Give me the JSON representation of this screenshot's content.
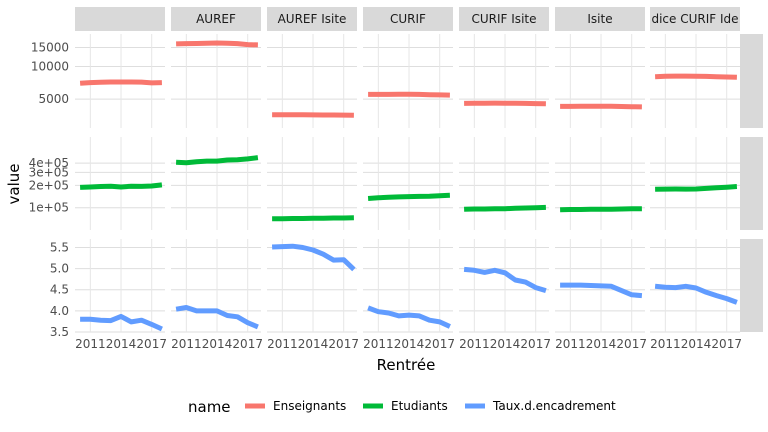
{
  "chart_data": {
    "type": "line",
    "xlabel": "Rentrée",
    "ylabel": "value",
    "x": [
      2010,
      2011,
      2012,
      2013,
      2014,
      2015,
      2016,
      2017,
      2018
    ],
    "x_ticks": [
      2011,
      2014,
      2017
    ],
    "legend": {
      "title": "name",
      "placement": "bottom"
    },
    "series_styles": [
      {
        "name": "Enseignants",
        "color": "#F8766D"
      },
      {
        "name": "Etudiants",
        "color": "#00BA38"
      },
      {
        "name": "Taux.d.encadrement",
        "color": "#619CFF"
      }
    ],
    "columns": [
      {
        "label": ""
      },
      {
        "label": "AUREF"
      },
      {
        "label": "AUREF Isite"
      },
      {
        "label": "CURIF"
      },
      {
        "label": "CURIF Isite"
      },
      {
        "label": "Isite"
      },
      {
        "label": "dice CURIF Ide"
      }
    ],
    "rows": [
      {
        "label": "Enseignants",
        "series": "Enseignants",
        "scale": "log",
        "ylim": [
          2700,
          20000
        ],
        "ticks": [
          {
            "value": 5000,
            "label": "5000"
          },
          {
            "value": 10000,
            "label": "10000"
          },
          {
            "value": 15000,
            "label": "15000"
          }
        ],
        "values": [
          [
            7000,
            7100,
            7150,
            7200,
            7200,
            7200,
            7180,
            7050,
            7100
          ],
          [
            16200,
            16300,
            16350,
            16450,
            16500,
            16450,
            16300,
            15950,
            15850
          ],
          [
            3580,
            3580,
            3580,
            3575,
            3570,
            3565,
            3560,
            3555,
            3550
          ],
          [
            5520,
            5520,
            5525,
            5530,
            5530,
            5520,
            5490,
            5460,
            5440
          ],
          [
            4560,
            4570,
            4580,
            4585,
            4580,
            4570,
            4560,
            4540,
            4520
          ],
          [
            4280,
            4280,
            4290,
            4300,
            4300,
            4290,
            4270,
            4250,
            4230
          ],
          [
            8050,
            8120,
            8150,
            8150,
            8140,
            8100,
            8050,
            8000,
            7950
          ]
        ]
      },
      {
        "label": "Etudiants",
        "series": "Etudiants",
        "scale": "log",
        "ylim": [
          50000,
          900000
        ],
        "ticks": [
          {
            "value": 100000,
            "label": "1e+05"
          },
          {
            "value": 200000,
            "label": "2e+05"
          },
          {
            "value": 300000,
            "label": "3e+05"
          },
          {
            "value": 400000,
            "label": "4e+05"
          }
        ],
        "values": [
          [
            188000,
            190000,
            193000,
            195000,
            190000,
            195000,
            194000,
            196000,
            203000
          ],
          [
            410000,
            405000,
            418000,
            425000,
            425000,
            440000,
            445000,
            455000,
            475000
          ],
          [
            71000,
            71000,
            71500,
            71500,
            72000,
            72000,
            72500,
            72500,
            73000
          ],
          [
            133000,
            136000,
            138000,
            140000,
            141000,
            142000,
            143000,
            145000,
            147000
          ],
          [
            95000,
            96000,
            96000,
            96500,
            97000,
            98000,
            99000,
            100000,
            101000
          ],
          [
            94000,
            94500,
            94500,
            95000,
            95000,
            95500,
            96000,
            96500,
            97000
          ],
          [
            177000,
            178000,
            179000,
            178000,
            179000,
            182000,
            186000,
            189000,
            193000
          ]
        ]
      },
      {
        "label": "Taux.d.encadrement",
        "series": "Taux.d.encadrement",
        "scale": "linear",
        "ylim": [
          3.5,
          5.7
        ],
        "ticks": [
          {
            "value": 3.5,
            "label": "3.5"
          },
          {
            "value": 4.0,
            "label": "4.0"
          },
          {
            "value": 4.5,
            "label": "4.5"
          },
          {
            "value": 5.0,
            "label": "5.0"
          },
          {
            "value": 5.5,
            "label": "5.5"
          }
        ],
        "values": [
          [
            3.8,
            3.8,
            3.78,
            3.77,
            3.87,
            3.74,
            3.78,
            3.68,
            3.57
          ],
          [
            4.04,
            4.08,
            4.0,
            4.0,
            4.0,
            3.89,
            3.86,
            3.72,
            3.62
          ],
          [
            5.51,
            5.52,
            5.53,
            5.5,
            5.44,
            5.34,
            5.2,
            5.21,
            4.98
          ],
          [
            4.07,
            3.98,
            3.95,
            3.88,
            3.9,
            3.88,
            3.78,
            3.74,
            3.63
          ],
          [
            4.98,
            4.96,
            4.91,
            4.96,
            4.9,
            4.73,
            4.68,
            4.55,
            4.48
          ],
          [
            4.61,
            4.61,
            4.61,
            4.6,
            4.59,
            4.58,
            4.48,
            4.38,
            4.36
          ],
          [
            4.58,
            4.56,
            4.55,
            4.58,
            4.54,
            4.44,
            4.36,
            4.29,
            4.2
          ]
        ]
      }
    ]
  }
}
